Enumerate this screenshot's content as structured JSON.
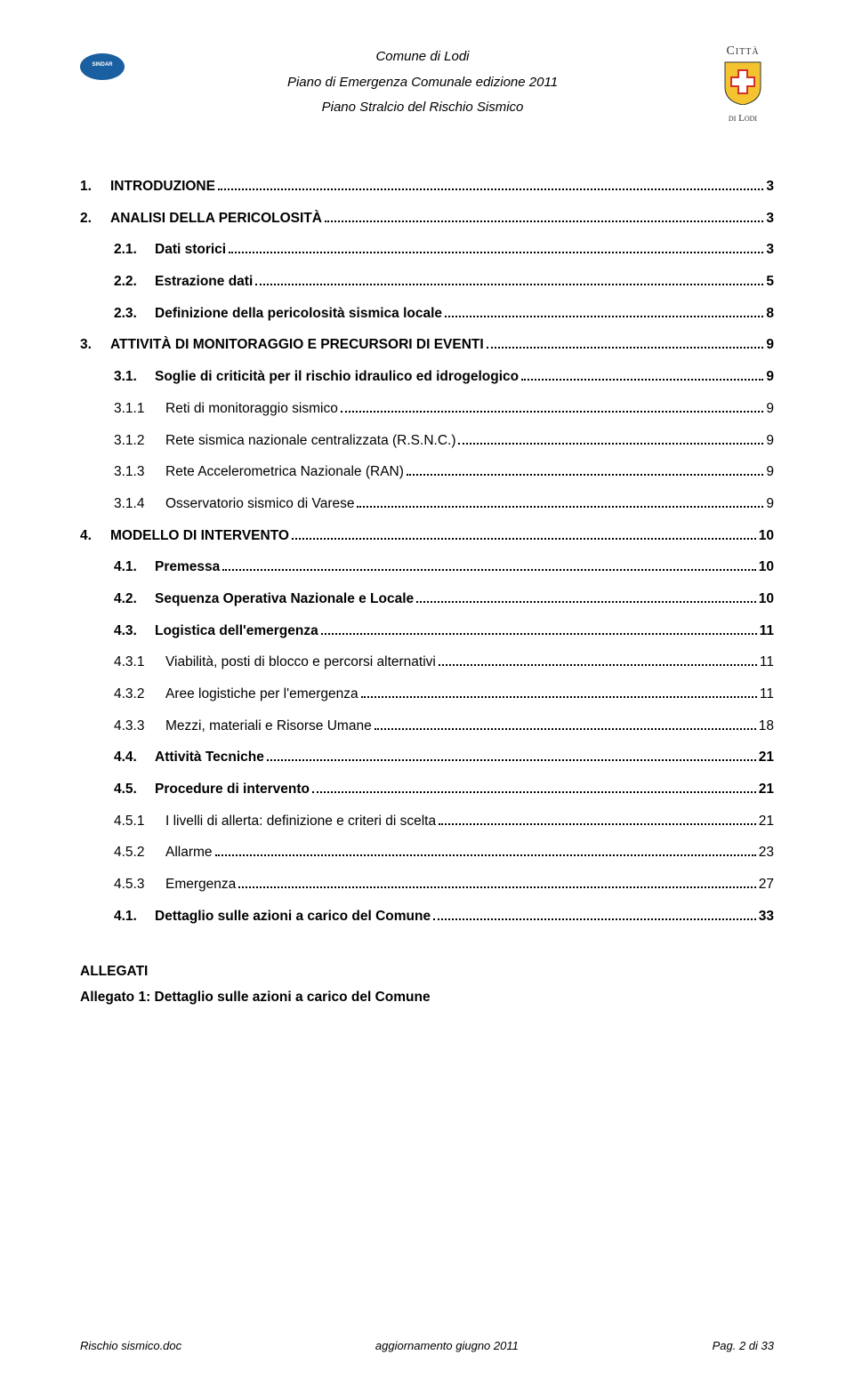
{
  "header": {
    "line1": "Comune di Lodi",
    "line2": "Piano di Emergenza Comunale edizione 2011",
    "line3": "Piano Stralcio del Rischio Sismico",
    "logo_left_text": "SINDAR",
    "logo_right_top": "Città",
    "logo_right_bottom": "di Lodi"
  },
  "toc": [
    {
      "level": 1,
      "num": "1.",
      "label": "INTRODUZIONE",
      "page": "3"
    },
    {
      "level": 1,
      "num": "2.",
      "label": "ANALISI DELLA PERICOLOSITÀ",
      "page": "3"
    },
    {
      "level": 2,
      "num": "2.1.",
      "label": "Dati storici",
      "page": "3"
    },
    {
      "level": 2,
      "num": "2.2.",
      "label": "Estrazione dati",
      "page": "5"
    },
    {
      "level": 2,
      "num": "2.3.",
      "label": "Definizione della pericolosità sismica locale",
      "page": "8"
    },
    {
      "level": 1,
      "num": "3.",
      "label": "ATTIVITÀ DI MONITORAGGIO E PRECURSORI DI EVENTI",
      "page": "9"
    },
    {
      "level": 2,
      "num": "3.1.",
      "label": "Soglie di criticità per il rischio idraulico ed idrogelogico",
      "page": "9"
    },
    {
      "level": 3,
      "num": "3.1.1",
      "label": "Reti di monitoraggio sismico",
      "page": "9"
    },
    {
      "level": 3,
      "num": "3.1.2",
      "label": "Rete sismica nazionale centralizzata (R.S.N.C.)",
      "page": "9"
    },
    {
      "level": 3,
      "num": "3.1.3",
      "label": "Rete Accelerometrica Nazionale (RAN)",
      "page": "9"
    },
    {
      "level": 3,
      "num": "3.1.4",
      "label": "Osservatorio sismico di Varese",
      "page": "9"
    },
    {
      "level": 1,
      "num": "4.",
      "label": "MODELLO DI INTERVENTO",
      "page": "10"
    },
    {
      "level": 2,
      "num": "4.1.",
      "label": "Premessa",
      "page": "10"
    },
    {
      "level": 2,
      "num": "4.2.",
      "label": "Sequenza Operativa Nazionale e Locale",
      "page": "10"
    },
    {
      "level": 2,
      "num": "4.3.",
      "label": "Logistica dell'emergenza",
      "page": "11"
    },
    {
      "level": 3,
      "num": "4.3.1",
      "label": "Viabilità, posti di blocco e percorsi alternativi",
      "page": "11"
    },
    {
      "level": 3,
      "num": "4.3.2",
      "label": "Aree logistiche per l'emergenza",
      "page": "11"
    },
    {
      "level": 3,
      "num": "4.3.3",
      "label": "Mezzi, materiali e Risorse Umane",
      "page": "18"
    },
    {
      "level": 2,
      "num": "4.4.",
      "label": "Attività Tecniche",
      "page": "21"
    },
    {
      "level": 2,
      "num": "4.5.",
      "label": "Procedure di intervento",
      "page": "21"
    },
    {
      "level": 3,
      "num": "4.5.1",
      "label": "I livelli di allerta: definizione e criteri di scelta",
      "page": "21"
    },
    {
      "level": 3,
      "num": "4.5.2",
      "label": "Allarme",
      "page": "23"
    },
    {
      "level": 3,
      "num": "4.5.3",
      "label": "Emergenza",
      "page": "27"
    },
    {
      "level": 2,
      "num": "4.1.",
      "label": "Dettaglio sulle azioni a carico del Comune",
      "page": "33"
    }
  ],
  "allegati": {
    "title": "ALLEGATI",
    "item1": "Allegato 1: Dettaglio sulle azioni a carico del Comune"
  },
  "footer": {
    "left": "Rischio sismico.doc",
    "center": "aggiornamento giugno 2011",
    "right": "Pag. 2 di 33"
  },
  "colors": {
    "text": "#000000",
    "background": "#ffffff",
    "logo_blue": "#1a5fa0",
    "shield_yellow": "#f4c430",
    "shield_red": "#d32f2f"
  }
}
